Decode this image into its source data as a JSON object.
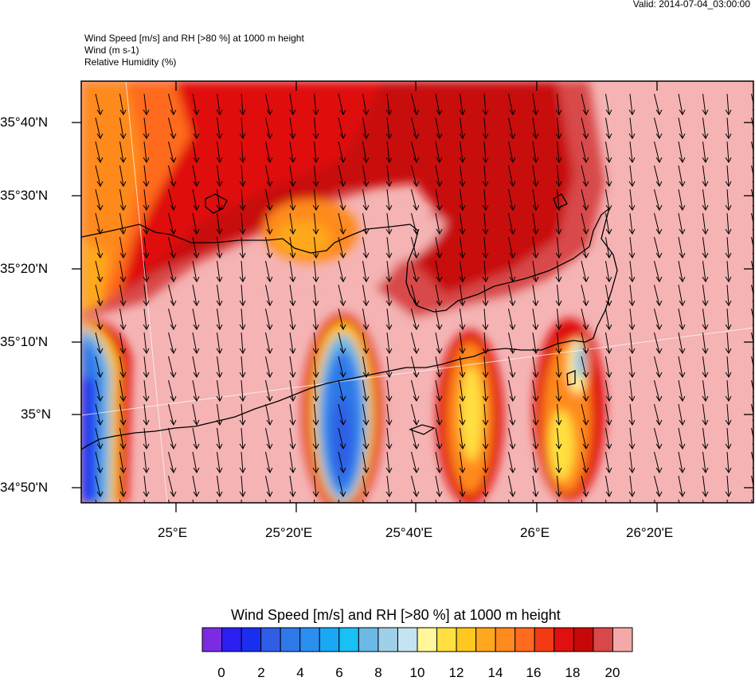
{
  "header": {
    "valid": "Valid: 2014-07-04_03:00:00",
    "line1": "Wind Speed [m/s] and RH [>80 %] at 1000 m height",
    "line2": "Wind   (m s-1)",
    "line3": "Relative Humidity   (%)"
  },
  "axes": {
    "lat_labels": [
      "35°40'N",
      "35°30'N",
      "35°20'N",
      "35°10'N",
      "35°N",
      "34°50'N"
    ],
    "lon_labels": [
      "25°E",
      "25°20'E",
      "25°40'E",
      "26°E",
      "26°20'E"
    ]
  },
  "colorbar": {
    "title": "Wind Speed [m/s] and RH [>80 %] at 1000 m height",
    "labels": [
      "0",
      "2",
      "4",
      "6",
      "8",
      "10",
      "12",
      "14",
      "16",
      "18",
      "20"
    ],
    "colors": [
      "#7b2be0",
      "#2b1ff2",
      "#1a2ef0",
      "#2f5de6",
      "#2f78ea",
      "#2a90f0",
      "#1aa8f5",
      "#18c0f5",
      "#6cb8e6",
      "#9fd0ea",
      "#c4e4f2",
      "#fff79a",
      "#ffe040",
      "#ffc81e",
      "#ffa81e",
      "#ff8a1e",
      "#ff6a1e",
      "#f23a14",
      "#e01010",
      "#c80808",
      "#d84848",
      "#f5a8a8"
    ]
  },
  "colors": {
    "land": "#f5b3b3",
    "coast": "#000000",
    "arrow": "#000000"
  }
}
